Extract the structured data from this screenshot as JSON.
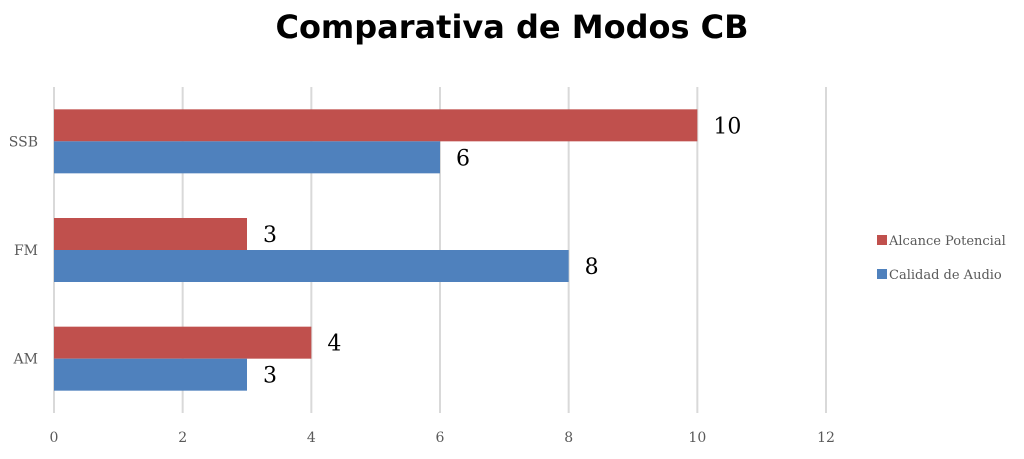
{
  "chart_data": {
    "type": "bar",
    "orientation": "horizontal",
    "title": "Comparativa de Modos CB",
    "categories": [
      "AM",
      "FM",
      "SSB"
    ],
    "series": [
      {
        "name": "Alcance Potencial",
        "color": "#C0504D",
        "values": [
          4,
          3,
          10
        ]
      },
      {
        "name": "Calidad de Audio",
        "color": "#4F81BD",
        "values": [
          3,
          8,
          6
        ]
      }
    ],
    "xlim": [
      0,
      12
    ],
    "xticks": [
      0,
      2,
      4,
      6,
      8,
      10,
      12
    ],
    "grid": true,
    "legend": "right",
    "data_labels": true
  }
}
